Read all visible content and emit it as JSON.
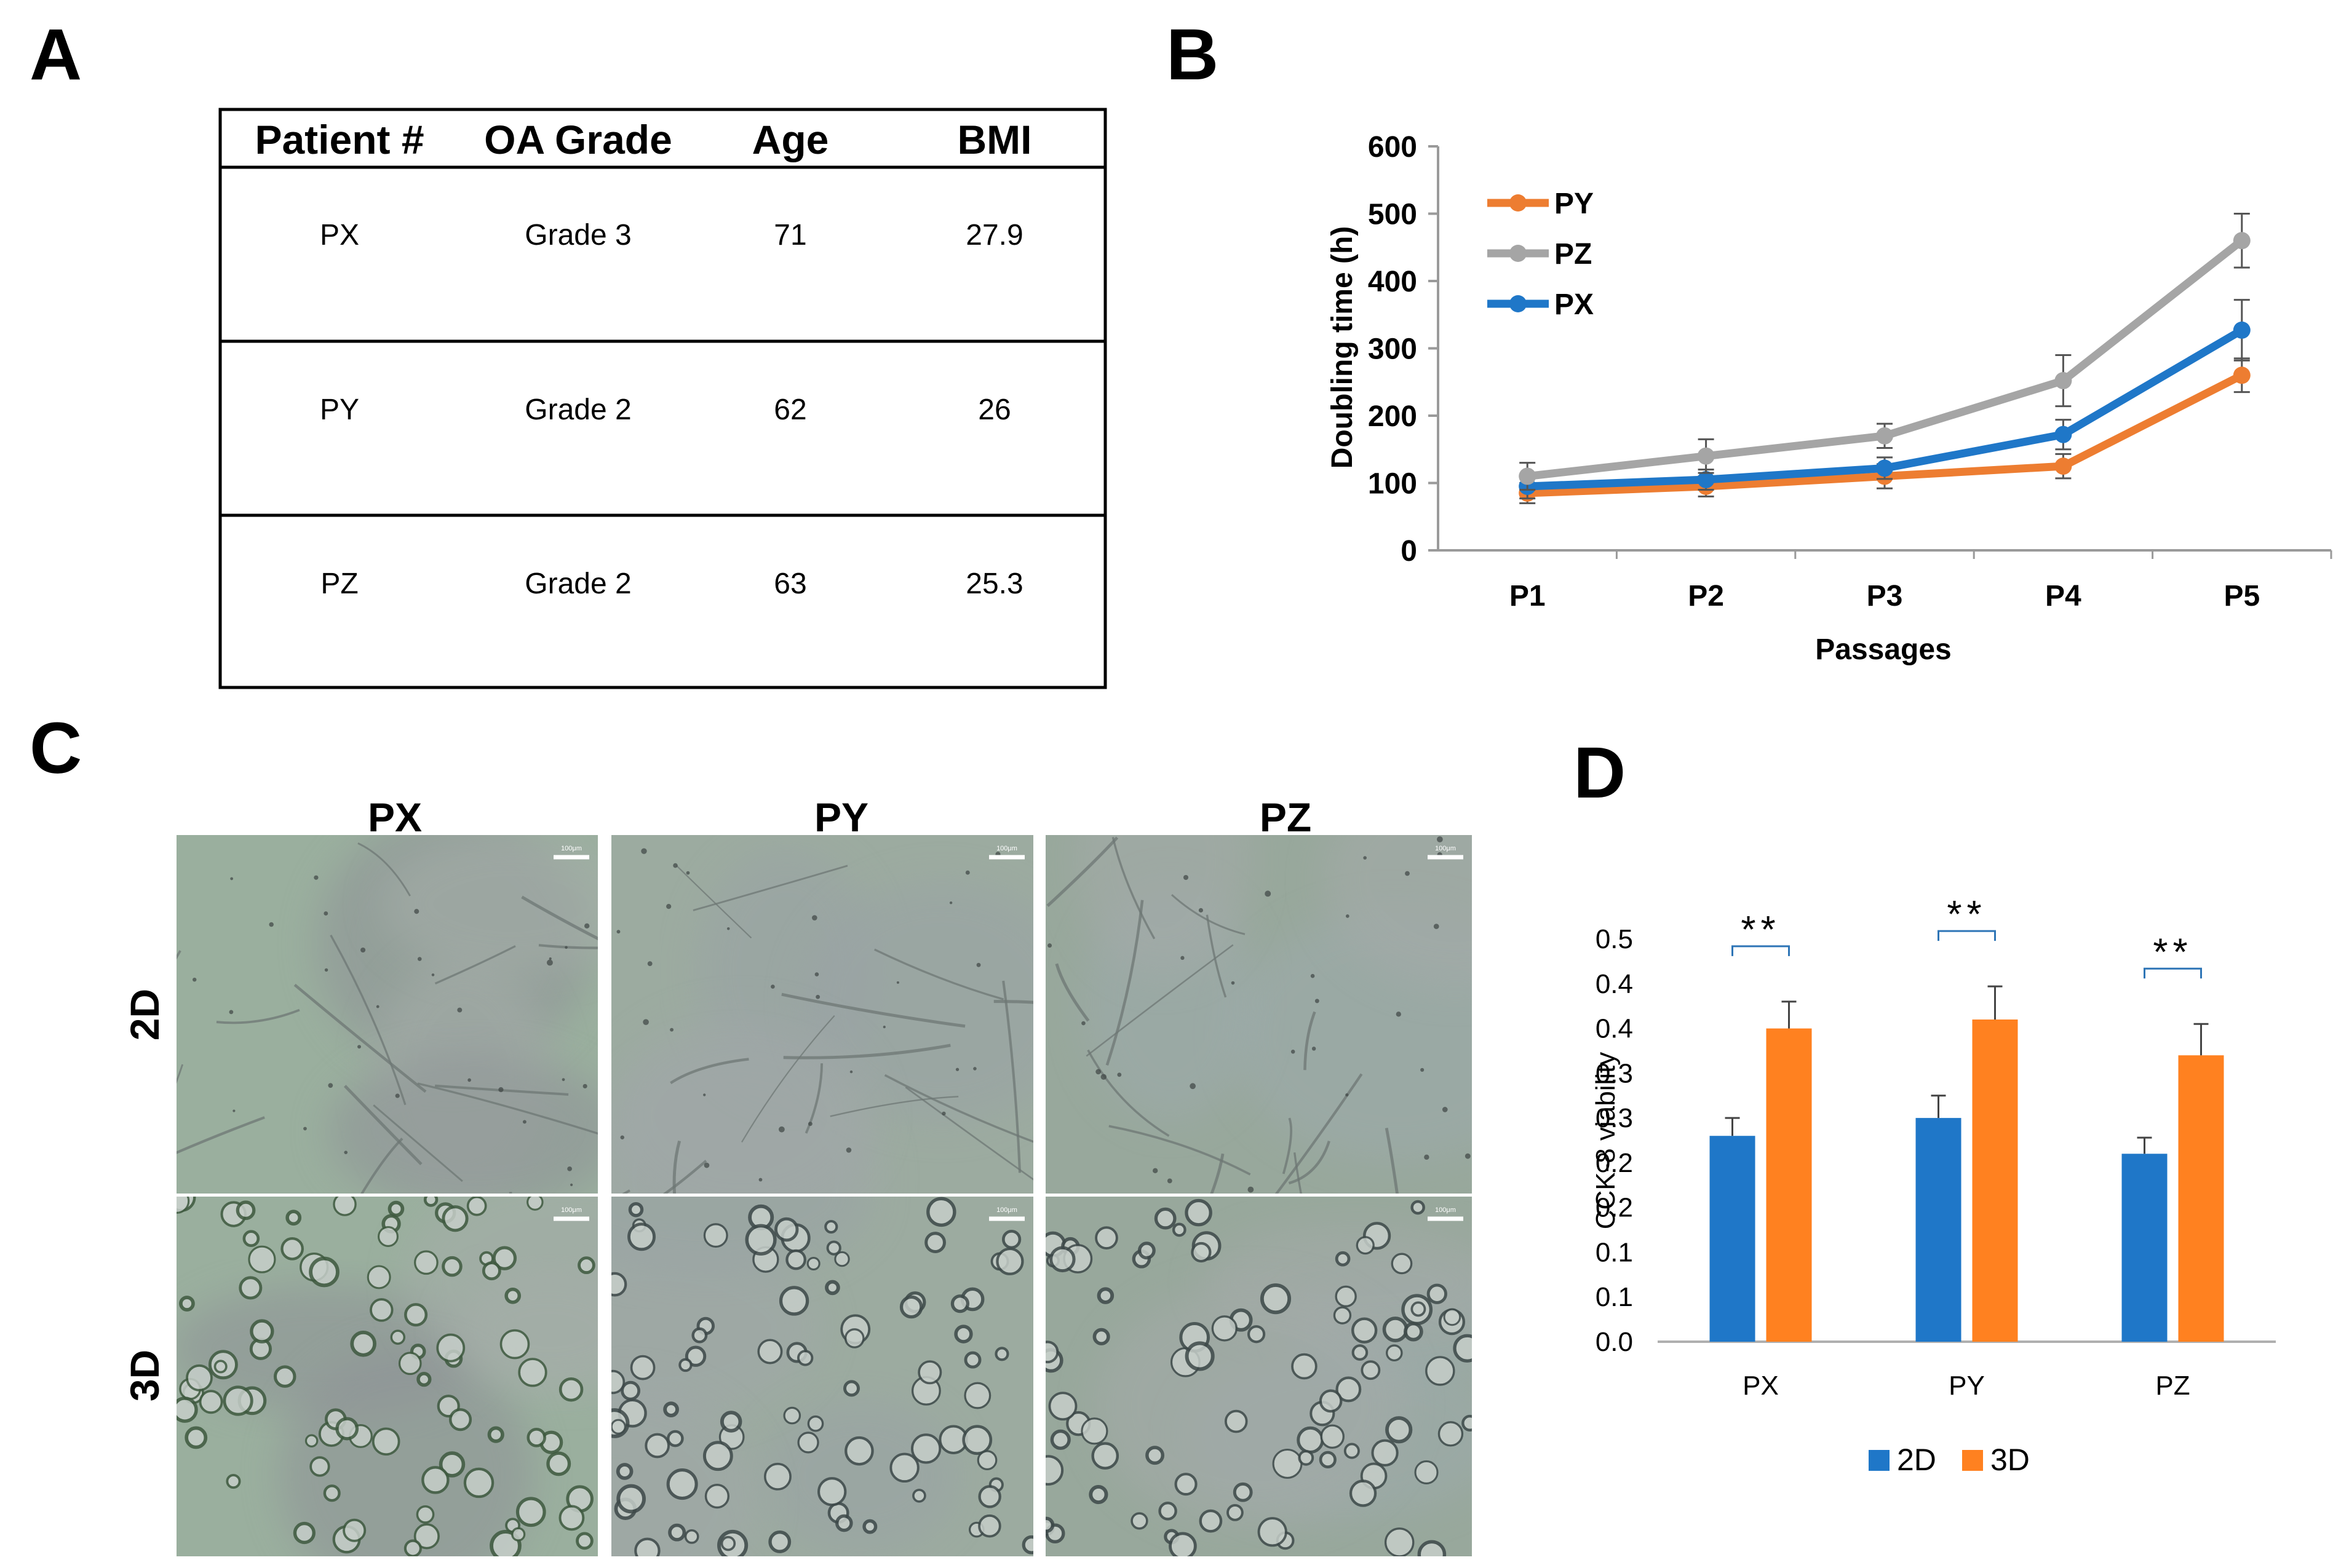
{
  "panel_labels": [
    "A",
    "B",
    "C",
    "D"
  ],
  "table": {
    "headers": [
      "Patient #",
      "OA Grade",
      "Age",
      "BMI"
    ],
    "rows": [
      [
        "PX",
        "Grade 3",
        "71",
        "27.9"
      ],
      [
        "PY",
        "Grade 2",
        "62",
        "26"
      ],
      [
        "PZ",
        "Grade 2",
        "63",
        "25.3"
      ]
    ]
  },
  "micrographs": {
    "columns": [
      "PX",
      "PY",
      "PZ"
    ],
    "rows": [
      "2D",
      "3D"
    ],
    "scale_bar_label": "100μm"
  },
  "chart_data": [
    {
      "type": "line",
      "panel": "B",
      "xlabel": "Passages",
      "ylabel": "Doubling time (h)",
      "categories": [
        "P1",
        "P2",
        "P3",
        "P4",
        "P5"
      ],
      "ylim": [
        0,
        600
      ],
      "yticks": [
        "0",
        "100",
        "200",
        "300",
        "400",
        "500",
        "600"
      ],
      "legend_position": "top-left",
      "series": [
        {
          "name": "PY",
          "color": "#ED7D31",
          "values": [
            85,
            95,
            110,
            125,
            260
          ],
          "errors": [
            15,
            15,
            18,
            18,
            25
          ]
        },
        {
          "name": "PZ",
          "color": "#A5A5A5",
          "values": [
            110,
            140,
            170,
            252,
            460
          ],
          "errors": [
            20,
            25,
            18,
            38,
            40
          ]
        },
        {
          "name": "PX",
          "color": "#1F77C8",
          "values": [
            95,
            105,
            122,
            172,
            327
          ],
          "errors": [
            18,
            15,
            16,
            22,
            45
          ]
        }
      ]
    },
    {
      "type": "bar",
      "panel": "D",
      "ylabel": "CCK-8 viability",
      "categories": [
        "PX",
        "PY",
        "PZ"
      ],
      "ylim": [
        0,
        0.45
      ],
      "ytick_values": [
        0,
        0.05,
        0.1,
        0.15,
        0.2,
        0.25,
        0.3,
        0.35,
        0.4,
        0.45
      ],
      "yticks": [
        "0.0",
        "0.1",
        "0.1",
        "0.2",
        "0.2",
        "0.3",
        "0.3",
        "0.4",
        "0.4",
        "0.5"
      ],
      "legend_position": "bottom-center",
      "significance": [
        "**",
        "**",
        "**"
      ],
      "series": [
        {
          "name": "2D",
          "color": "#1F77C8",
          "values": [
            0.23,
            0.25,
            0.21
          ],
          "errors": [
            0.02,
            0.025,
            0.018
          ]
        },
        {
          "name": "3D",
          "color": "#FF8120",
          "values": [
            0.35,
            0.36,
            0.32
          ],
          "errors": [
            0.03,
            0.037,
            0.035
          ]
        }
      ]
    }
  ]
}
